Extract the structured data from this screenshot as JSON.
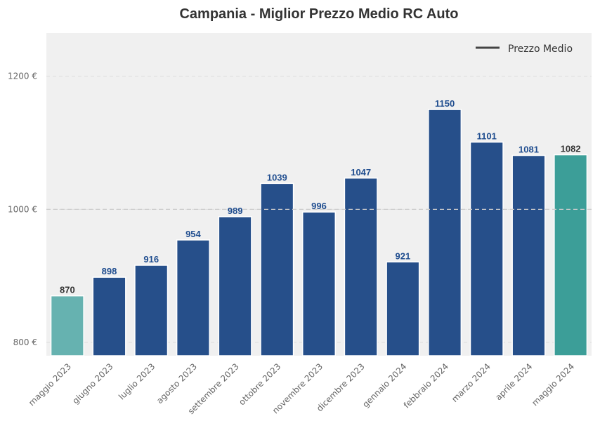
{
  "chart_data": {
    "type": "bar",
    "title": "Campania - Miglior Prezzo Medio RC Auto",
    "xlabel": "",
    "ylabel": "",
    "ylim": [
      780,
      1265
    ],
    "yticks": [
      800,
      1000,
      1200
    ],
    "ytick_labels": [
      "800 €",
      "1000 €",
      "1200 €"
    ],
    "categories": [
      "maggio 2023",
      "giugno 2023",
      "luglio 2023",
      "agosto 2023",
      "settembre 2023",
      "ottobre 2023",
      "novembre 2023",
      "dicembre 2023",
      "gennaio 2024",
      "febbraio 2024",
      "marzo 2024",
      "aprile 2024",
      "maggio 2024"
    ],
    "values": [
      870,
      898,
      916,
      954,
      989,
      1039,
      996,
      1047,
      921,
      1150,
      1101,
      1081,
      1082
    ],
    "value_labels": [
      "870",
      "898",
      "916",
      "954",
      "989",
      "1039",
      "996",
      "1047",
      "921",
      "1150",
      "1101",
      "1081",
      "1082"
    ],
    "bar_colors": [
      "#66b2b0",
      "#264f8a",
      "#264f8a",
      "#264f8a",
      "#264f8a",
      "#264f8a",
      "#264f8a",
      "#264f8a",
      "#264f8a",
      "#264f8a",
      "#264f8a",
      "#264f8a",
      "#3c9e98"
    ],
    "label_colors": [
      "#333333",
      "#1f4d8f",
      "#1f4d8f",
      "#1f4d8f",
      "#1f4d8f",
      "#1f4d8f",
      "#1f4d8f",
      "#1f4d8f",
      "#1f4d8f",
      "#1f4d8f",
      "#1f4d8f",
      "#1f4d8f",
      "#333333"
    ],
    "reference_line": {
      "value": 1000
    },
    "legend": {
      "label": "Prezzo Medio",
      "placement": "top-right",
      "color": "#444444"
    },
    "grid": true,
    "background_color": "#f0f0f0"
  }
}
